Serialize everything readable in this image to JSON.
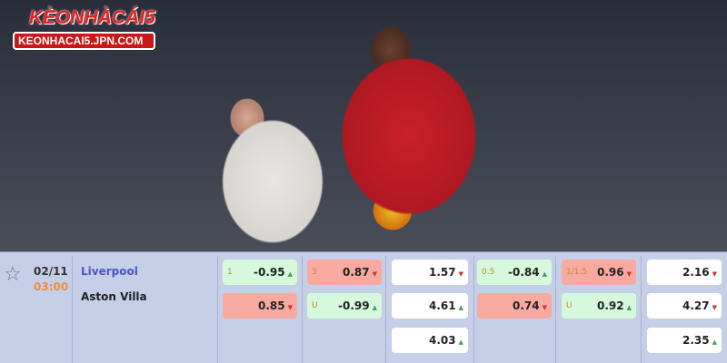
{
  "logo": {
    "title": "KÈONHÀCÁI5",
    "url": "KEONHACAI5.JPN.COM"
  },
  "match": {
    "date": "02/11",
    "time": "03:00",
    "home": "Liverpool",
    "away": "Aston Villa"
  },
  "odds": [
    {
      "label": "1",
      "value": "-0.95",
      "trend": "up",
      "color": "green"
    },
    {
      "label": "",
      "value": "0.85",
      "trend": "down",
      "color": "red"
    },
    {
      "label": "3",
      "value": "0.87",
      "trend": "down",
      "color": "red"
    },
    {
      "label": "U",
      "value": "-0.99",
      "trend": "up",
      "color": "green"
    },
    {
      "label": "",
      "value": "1.57",
      "trend": "down",
      "color": "white"
    },
    {
      "label": "",
      "value": "4.61",
      "trend": "up",
      "color": "white"
    },
    {
      "label": "",
      "value": "4.03",
      "trend": "up",
      "color": "white"
    },
    {
      "label": "0.5",
      "value": "-0.84",
      "trend": "up",
      "color": "green"
    },
    {
      "label": "",
      "value": "0.74",
      "trend": "down",
      "color": "red"
    },
    {
      "label": "1/1.5",
      "value": "0.96",
      "trend": "down",
      "color": "red"
    },
    {
      "label": "U",
      "value": "0.92",
      "trend": "up",
      "color": "green"
    },
    {
      "label": "",
      "value": "2.16",
      "trend": "down",
      "color": "white"
    },
    {
      "label": "",
      "value": "4.27",
      "trend": "down",
      "color": "white"
    },
    {
      "label": "",
      "value": "2.35",
      "trend": "up",
      "color": "white"
    }
  ]
}
